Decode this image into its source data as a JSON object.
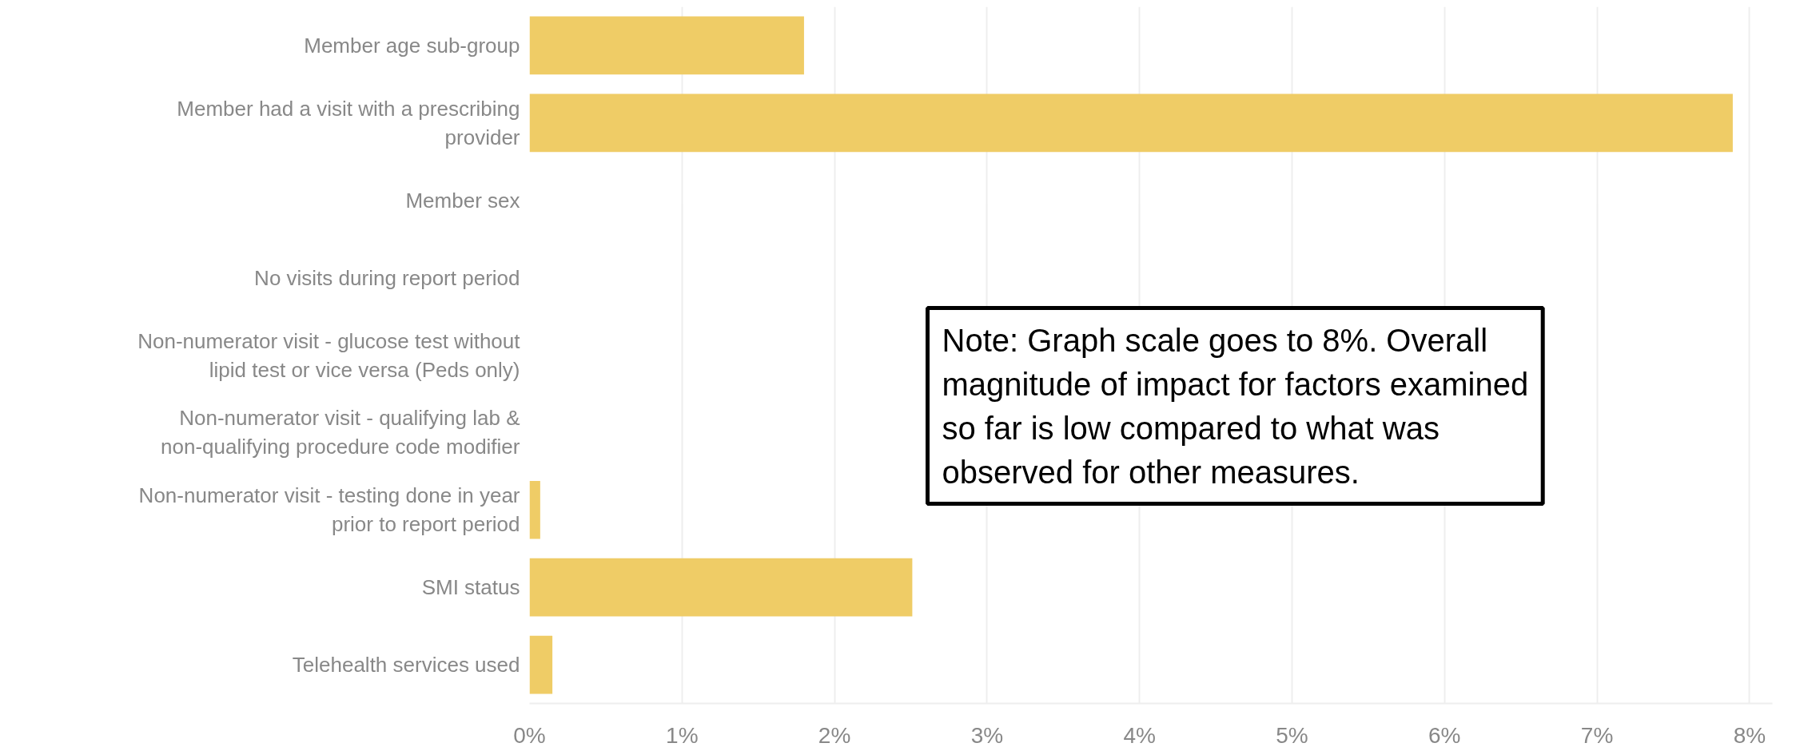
{
  "chart_data": {
    "type": "bar",
    "orientation": "horizontal",
    "categories": [
      "Member age sub-group",
      "Member had a visit with a prescribing provider",
      "Member sex",
      "No visits during report period",
      "Non-numerator visit - glucose test without lipid test or vice versa (Peds only)",
      "Non-numerator visit - qualifying lab & non-qualifying procedure code modifier",
      "Non-numerator visit - testing done in year prior to report period",
      "SMI status",
      "Telehealth services used"
    ],
    "values": [
      1.8,
      7.89,
      0,
      0,
      0,
      0,
      0.07,
      2.51,
      0.15
    ],
    "color": "#efcc66",
    "xlim": [
      0,
      8.15
    ],
    "xticks": [
      {
        "value": 0,
        "label": "0%"
      },
      {
        "value": 1,
        "label": "1%"
      },
      {
        "value": 2,
        "label": "2%"
      },
      {
        "value": 3,
        "label": "3%"
      },
      {
        "value": 4,
        "label": "4%"
      },
      {
        "value": 5,
        "label": "5%"
      },
      {
        "value": 6,
        "label": "6%"
      },
      {
        "value": 7,
        "label": "7%"
      },
      {
        "value": 8,
        "label": "8%"
      }
    ],
    "grid": "x",
    "annotations": [
      "Note: Graph scale goes to 8%. Overall magnitude of impact for factors examined so far is low compared to what was observed for other measures."
    ]
  }
}
